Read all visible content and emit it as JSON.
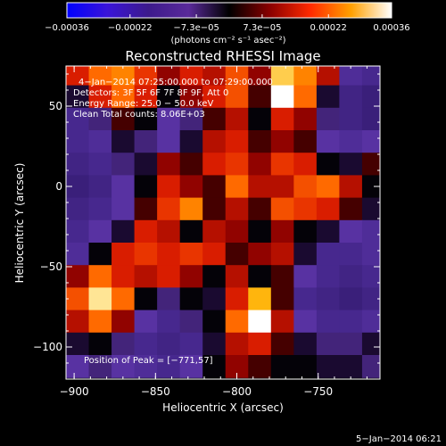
{
  "chart_data": {
    "type": "heatmap",
    "title": "Reconstructed RHESSI Image",
    "xlabel": "Heliocentric X (arcsec)",
    "ylabel": "Heliocentric Y (arcsec)",
    "xlim": [
      -905,
      -712
    ],
    "ylim": [
      -120,
      75
    ],
    "x_ticks": [
      -900,
      -850,
      -800,
      -750
    ],
    "y_ticks": [
      -100,
      -50,
      0,
      50
    ],
    "x_tick_labels": [
      "−900",
      "−850",
      "−800",
      "−750"
    ],
    "y_tick_labels": [
      "−100",
      "−50",
      "0",
      "50"
    ],
    "colorbar": {
      "range": [
        -0.00036,
        0.00036
      ],
      "ticks": [
        -0.00036,
        -0.00022,
        -7.3e-05,
        7.3e-05,
        0.00022,
        0.00036
      ],
      "tick_labels": [
        "−0.00036",
        "−0.00022",
        "−7.3e−05",
        "7.3e−05",
        "0.00022",
        "0.00036"
      ],
      "unit_label": "(photons cm⁻² s⁻¹ asec⁻²)",
      "colormap": [
        "#0000ff",
        "#3a14d8",
        "#3c1a8c",
        "#5a2a9a",
        "#000000",
        "#8a0000",
        "#ff2a00",
        "#ffa000",
        "#ffffff"
      ]
    },
    "info_lines": [
      "4−Jan−2014 07:25:00.000 to 07:29:00.000",
      "Detectors: 3F 5F 6F 7F 8F 9F, Att 0",
      "Energy Range: 25.0 − 50.0 keV",
      "Clean     Total counts: 8.06E+03"
    ],
    "peak_label": "Position of Peak = [−771,57]",
    "peak": [
      -771,
      57
    ],
    "image_grid": {
      "x_centers": [
        -898,
        -884,
        -870,
        -856,
        -842,
        -828,
        -814,
        -800,
        -786,
        -772,
        -758,
        -744,
        -730,
        -716
      ],
      "y_centers": [
        70,
        56,
        42,
        28,
        14,
        0,
        -14,
        -28,
        -42,
        -56,
        -70,
        -84,
        -98,
        -112
      ],
      "intensity": [
        [
          0.55,
          0.7,
          0.75,
          0.6,
          0.45,
          0.55,
          0.5,
          0.65,
          0.45,
          0.9,
          0.75,
          0.5,
          0.15,
          0.1
        ],
        [
          0.3,
          0.55,
          0.7,
          0.55,
          0.35,
          0.45,
          0.55,
          0.65,
          0.4,
          1.0,
          0.7,
          0.3,
          0.05,
          0.0
        ],
        [
          0.1,
          0.25,
          0.4,
          0.35,
          0.2,
          0.25,
          0.4,
          0.5,
          0.35,
          0.55,
          0.45,
          0.25,
          0.05,
          0.0
        ],
        [
          0.1,
          0.15,
          0.3,
          0.25,
          0.2,
          0.3,
          0.5,
          0.55,
          0.4,
          0.45,
          0.4,
          0.2,
          0.15,
          0.2
        ],
        [
          0.05,
          0.1,
          0.25,
          0.3,
          0.45,
          0.4,
          0.55,
          0.6,
          0.45,
          0.6,
          0.55,
          0.35,
          0.3,
          0.4
        ],
        [
          0.0,
          0.05,
          0.2,
          0.35,
          0.55,
          0.45,
          0.4,
          0.7,
          0.5,
          0.5,
          0.65,
          0.7,
          0.5,
          0.35
        ],
        [
          0.05,
          0.1,
          0.2,
          0.4,
          0.6,
          0.75,
          0.4,
          0.5,
          0.4,
          0.65,
          0.6,
          0.55,
          0.4,
          0.3
        ],
        [
          0.1,
          0.2,
          0.3,
          0.55,
          0.5,
          0.35,
          0.5,
          0.45,
          0.35,
          0.45,
          0.35,
          0.3,
          0.2,
          0.15
        ],
        [
          0.15,
          0.35,
          0.55,
          0.6,
          0.55,
          0.6,
          0.55,
          0.4,
          0.45,
          0.5,
          0.3,
          0.1,
          0.1,
          0.15
        ],
        [
          0.45,
          0.7,
          0.55,
          0.5,
          0.55,
          0.45,
          0.35,
          0.5,
          0.35,
          0.4,
          0.2,
          0.1,
          0.05,
          0.1
        ],
        [
          0.65,
          0.95,
          0.7,
          0.35,
          0.25,
          0.35,
          0.3,
          0.55,
          0.85,
          0.4,
          0.1,
          0.05,
          0.0,
          0.05
        ],
        [
          0.5,
          0.7,
          0.45,
          0.2,
          0.1,
          0.25,
          0.35,
          0.7,
          1.0,
          0.5,
          0.2,
          0.1,
          0.1,
          0.15
        ],
        [
          0.3,
          0.35,
          0.25,
          0.1,
          0.05,
          0.1,
          0.3,
          0.5,
          0.55,
          0.4,
          0.3,
          0.25,
          0.25,
          0.3
        ],
        [
          0.2,
          0.25,
          0.2,
          0.15,
          0.1,
          0.2,
          0.35,
          0.45,
          0.4,
          0.35,
          0.35,
          0.3,
          0.3,
          0.25
        ]
      ]
    }
  },
  "footer": {
    "timestamp": "5−Jan−2014 06:21"
  }
}
